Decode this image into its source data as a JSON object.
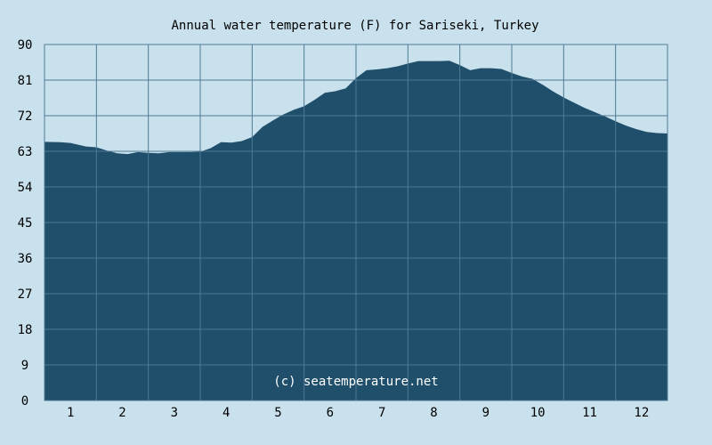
{
  "chart_data": {
    "type": "area",
    "title": "Annual water temperature (F) for Sariseki, Turkey",
    "xlabel": "",
    "ylabel": "",
    "x_ticks": [
      "1",
      "2",
      "3",
      "4",
      "5",
      "6",
      "7",
      "8",
      "9",
      "10",
      "11",
      "12"
    ],
    "y_ticks": [
      "0",
      "9",
      "18",
      "27",
      "36",
      "45",
      "54",
      "63",
      "72",
      "81",
      "90"
    ],
    "ylim": [
      0,
      90
    ],
    "xlim": [
      0.5,
      12.5
    ],
    "grid": true,
    "watermark": "(c) seatemperature.net",
    "colors": {
      "background": "#c9e1ec",
      "fill": "#1f4f6b",
      "grid": "#4d7a95",
      "text": "#000000",
      "watermark": "#ffffff"
    },
    "series": [
      {
        "x": [
          0.5,
          0.8,
          1.0,
          1.3,
          1.5,
          1.7,
          1.9,
          2.1,
          2.3,
          2.5,
          2.7,
          2.9,
          3.1,
          3.3,
          3.5,
          3.7,
          3.9,
          4.1,
          4.3,
          4.5,
          4.7,
          4.9,
          5.1,
          5.3,
          5.5,
          5.7,
          5.9,
          6.1,
          6.3,
          6.5,
          6.7,
          6.9,
          7.1,
          7.3,
          7.5,
          7.7,
          7.9,
          8.1,
          8.3,
          8.5,
          8.7,
          8.9,
          9.1,
          9.3,
          9.5,
          9.7,
          9.9,
          10.1,
          10.3,
          10.5,
          10.7,
          10.9,
          11.1,
          11.3,
          11.5,
          11.7,
          11.9,
          12.1,
          12.3,
          12.5
        ],
        "values": [
          65.4,
          65.3,
          65.1,
          64.2,
          64.0,
          63.2,
          62.5,
          62.3,
          62.8,
          62.6,
          62.5,
          62.8,
          62.8,
          62.8,
          62.9,
          63.8,
          65.3,
          65.2,
          65.6,
          66.6,
          69.2,
          70.8,
          72.3,
          73.5,
          74.4,
          76.0,
          77.8,
          78.2,
          78.9,
          81.5,
          83.5,
          83.7,
          84.0,
          84.5,
          85.2,
          85.8,
          85.8,
          85.8,
          85.9,
          84.8,
          83.5,
          84.0,
          84.0,
          83.8,
          82.8,
          81.9,
          81.3,
          79.8,
          78.1,
          76.6,
          75.3,
          74.0,
          72.9,
          71.8,
          70.6,
          69.5,
          68.6,
          67.9,
          67.6,
          67.5
        ]
      }
    ]
  }
}
